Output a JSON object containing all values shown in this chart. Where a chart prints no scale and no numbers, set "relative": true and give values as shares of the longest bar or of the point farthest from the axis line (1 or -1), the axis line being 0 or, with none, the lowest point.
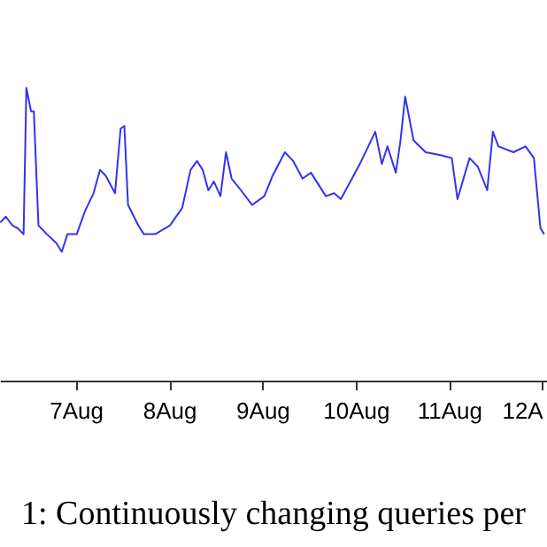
{
  "chart_data": {
    "type": "line",
    "relative": true,
    "annotations": [
      "1: Continuously changing queries per"
    ],
    "xlim": [
      "--08-06T04:30",
      "--08-12T01:12"
    ],
    "xticks": [
      {
        "value": "--08-07",
        "label": "7Aug"
      },
      {
        "value": "--08-08",
        "label": "8Aug"
      },
      {
        "value": "--08-09",
        "label": "9Aug"
      },
      {
        "value": "--08-10",
        "label": "10Aug"
      },
      {
        "value": "--08-11",
        "label": "11Aug"
      },
      {
        "value": "--08-12",
        "label": "12A"
      }
    ],
    "series": [
      {
        "color": "#3333ee",
        "x": [
          "--08-06T04:34",
          "--08-06T06:00",
          "--08-06T07:41",
          "--08-06T09:07",
          "--08-06T10:34",
          "--08-06T11:17",
          "--08-06T12:29",
          "--08-06T13:12",
          "--08-06T14:24",
          "--08-06T16:34",
          "--08-06T18:58",
          "--08-06T20:24",
          "--08-06T21:50",
          "--08-07T00:14",
          "--08-07T02:24",
          "--08-07T04:34",
          "--08-07T06:14",
          "--08-07T07:41",
          "--08-07T10:05",
          "--08-07T11:31",
          "--08-07T12:29",
          "--08-07T13:26",
          "--08-07T16:05",
          "--08-07T17:31",
          "--08-07T20:24",
          "--08-08T00:14",
          "--08-08T03:22",
          "--08-08T05:31",
          "--08-08T07:12",
          "--08-08T08:38",
          "--08-08T10:05",
          "--08-08T11:31",
          "--08-08T13:12",
          "--08-08T14:38",
          "--08-08T16:05",
          "--08-08T18:29",
          "--08-08T21:22",
          "--08-09T00:29",
          "--08-09T02:38",
          "--08-09T05:46",
          "--08-09T07:55",
          "--08-09T10:19",
          "--08-09T12:29",
          "--08-09T16:19",
          "--08-09T18:29",
          "--08-09T20:10",
          "--08-09T23:02",
          "--08-10T01:26",
          "--08-10T05:02",
          "--08-10T06:43",
          "--08-10T08:10",
          "--08-10T10:19",
          "--08-10T11:31",
          "--08-10T12:43",
          "--08-10T14:53",
          "--08-10T18:00",
          "--08-10T21:50",
          "--08-11T00:43",
          "--08-11T02:10",
          "--08-11T05:17",
          "--08-11T07:26",
          "--08-11T09:50",
          "--08-11T11:17",
          "--08-11T12:43",
          "--08-11T16:34",
          "--08-11T19:41",
          "--08-11T21:50",
          "--08-11T23:31",
          "--08-12T00:29"
        ],
        "values": [
          0.54,
          0.56,
          0.53,
          0.52,
          0.5,
          1.0,
          0.92,
          0.92,
          0.53,
          0.5,
          0.47,
          0.44,
          0.5,
          0.5,
          0.58,
          0.64,
          0.72,
          0.7,
          0.64,
          0.86,
          0.87,
          0.6,
          0.53,
          0.5,
          0.5,
          0.53,
          0.59,
          0.72,
          0.75,
          0.72,
          0.65,
          0.68,
          0.63,
          0.78,
          0.69,
          0.65,
          0.6,
          0.63,
          0.7,
          0.78,
          0.75,
          0.69,
          0.71,
          0.63,
          0.64,
          0.62,
          0.69,
          0.75,
          0.85,
          0.74,
          0.8,
          0.71,
          0.82,
          0.97,
          0.82,
          0.78,
          0.77,
          0.76,
          0.62,
          0.76,
          0.73,
          0.65,
          0.85,
          0.8,
          0.78,
          0.8,
          0.76,
          0.52,
          0.5
        ]
      }
    ]
  }
}
